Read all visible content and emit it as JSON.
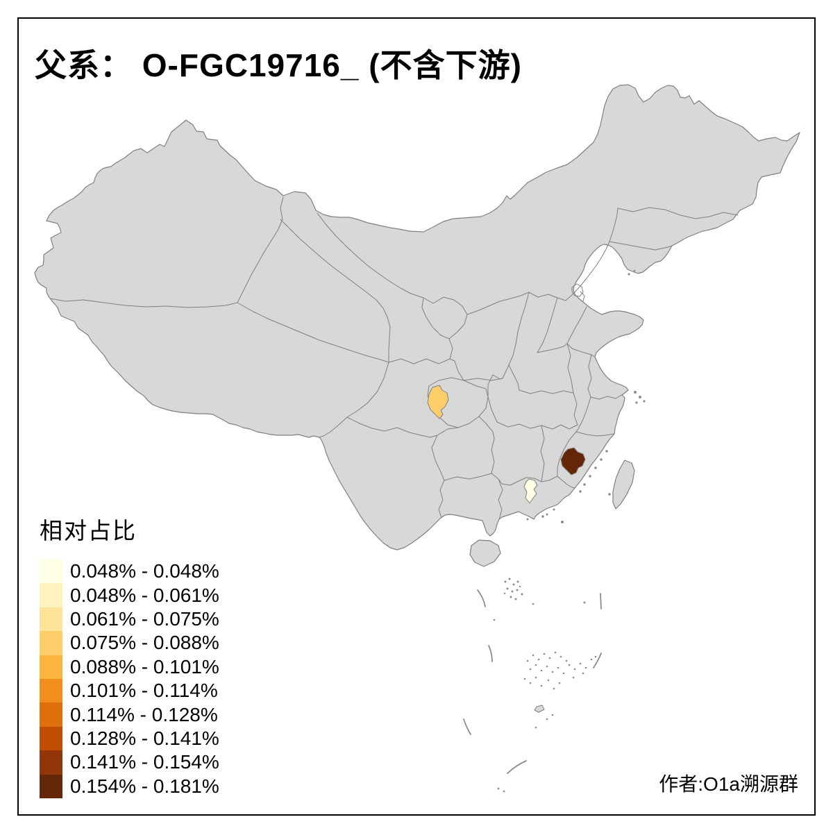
{
  "title": "父系： O-FGC19716_ (不含下游)",
  "author_credit": "作者:O1a溯源群",
  "legend": {
    "title": "相对占比",
    "items": [
      {
        "label": "0.048% - 0.048%",
        "color": "#FFFEE5"
      },
      {
        "label": "0.048% - 0.061%",
        "color": "#FEF3BE"
      },
      {
        "label": "0.061% - 0.075%",
        "color": "#FDE499"
      },
      {
        "label": "0.075% - 0.088%",
        "color": "#FDCE6A"
      },
      {
        "label": "0.088% - 0.101%",
        "color": "#FDB53F"
      },
      {
        "label": "0.101% - 0.114%",
        "color": "#F28E1E"
      },
      {
        "label": "0.114% - 0.128%",
        "color": "#DD6F0D"
      },
      {
        "label": "0.128% - 0.141%",
        "color": "#C04D04"
      },
      {
        "label": "0.141% - 0.154%",
        "color": "#923508"
      },
      {
        "label": "0.154% - 0.181%",
        "color": "#632708"
      }
    ]
  },
  "map": {
    "land_fill": "#D8D8D8",
    "border_color": "#7F7F7F",
    "highlighted_regions": [
      {
        "id": "southwest-region",
        "color": "#FDCE6A",
        "legend_range": "0.075% - 0.088%"
      },
      {
        "id": "west-fujian-region",
        "color": "#632708",
        "legend_range": "0.154% - 0.181%"
      },
      {
        "id": "central-guangdong-region",
        "color": "#FFFEE5",
        "legend_range": "0.048% - 0.048%"
      }
    ]
  }
}
